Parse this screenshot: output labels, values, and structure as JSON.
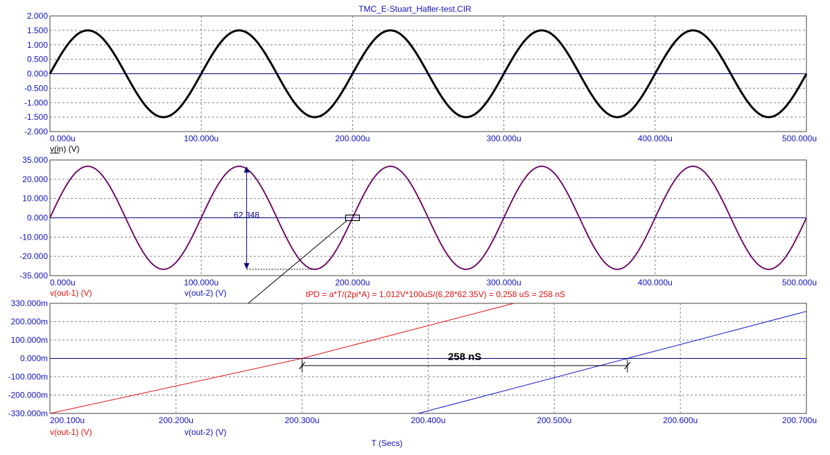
{
  "window_title": "TMC_E-Stuart_Hafler-test.CIR",
  "colors": {
    "axis": "#000080",
    "tick": "#1010c0",
    "curve_in": "#000000",
    "out1": "#e01010",
    "out2": "#1010c0",
    "grid": "#808080",
    "marker": "#000080",
    "note": "#e01010"
  },
  "chart_data": [
    {
      "type": "line",
      "title": "TMC_E-Stuart_Hafler-test.CIR",
      "x_tick_labels": [
        "0.000u",
        "100.000u",
        "200.000u",
        "300.000u",
        "400.000u",
        "500.000u"
      ],
      "y_tick_labels": [
        "2.000",
        "1.500",
        "1.000",
        "0.500",
        "0.000",
        "-0.500",
        "-1.000",
        "-1.500",
        "-2.000"
      ],
      "xlim": [
        0,
        500
      ],
      "ylim": [
        -2.0,
        2.0
      ],
      "grid": true,
      "series": [
        {
          "name": "v(in) (V)",
          "function": "sine",
          "amplitude": 1.5,
          "period": 100,
          "phase_deg": 0
        }
      ]
    },
    {
      "type": "line",
      "x_tick_labels": [
        "0.000u",
        "100.000u",
        "200.000u",
        "300.000u",
        "400.000u",
        "500.000u"
      ],
      "y_tick_labels": [
        "35.000",
        "20.000",
        "10.000",
        "0.000",
        "-10.000",
        "-20.000",
        "-35.000"
      ],
      "xlim": [
        0,
        500
      ],
      "ylim": [
        -35.0,
        35.0
      ],
      "grid": true,
      "series": [
        {
          "name": "v(out-1) (V)",
          "function": "sine",
          "amplitude": 31.17,
          "period": 100,
          "phase_deg": 0
        },
        {
          "name": "v(out-2) (V)",
          "function": "sine",
          "amplitude": 31.17,
          "period": 100,
          "phase_deg": 0
        }
      ],
      "annotations": {
        "peak_to_peak_label": "62.348",
        "formula": "tPD = a*T/(2pi*A) = 1,012V*100uS/(6,28*62.35V) = 0,258 uS = 258 nS"
      }
    },
    {
      "type": "line",
      "x_tick_labels": [
        "200.100u",
        "200.200u",
        "200.300u",
        "200.400u",
        "200.500u",
        "200.600u",
        "200.700u"
      ],
      "y_tick_labels": [
        "330.000m",
        "200.000m",
        "100.000m",
        "0.000m",
        "-100.000m",
        "-200.000m",
        "-330.000m"
      ],
      "xlim": [
        200.1,
        200.7
      ],
      "ylim": [
        -330,
        330
      ],
      "xlabel": "T (Secs)",
      "grid": true,
      "series": [
        {
          "name": "v(out-1) (V)",
          "x": [
            200.1,
            200.3,
            200.468
          ],
          "y": [
            -330,
            0,
            330
          ]
        },
        {
          "name": "v(out-2) (V)",
          "x": [
            200.392,
            200.558,
            200.7
          ],
          "y": [
            -330,
            0,
            282
          ]
        }
      ],
      "annotations": {
        "delay_label": "258 nS",
        "delay_x": [
          200.3,
          200.558
        ]
      }
    }
  ]
}
